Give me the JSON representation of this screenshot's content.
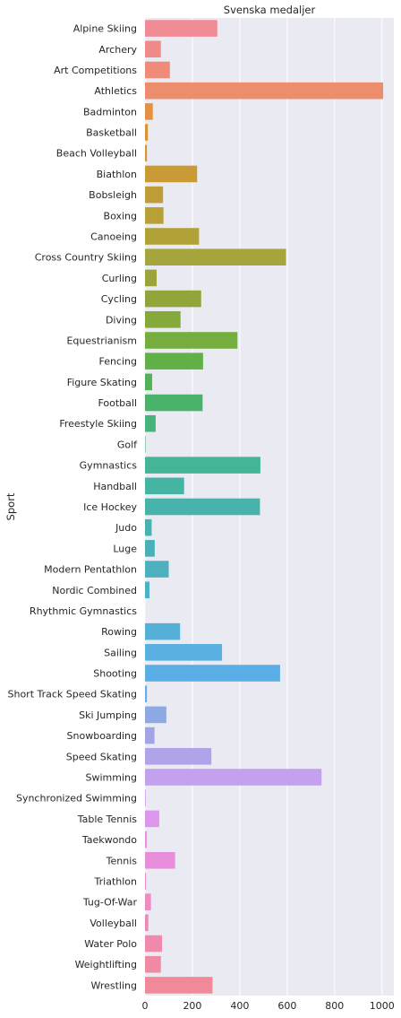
{
  "chart_data": {
    "type": "bar",
    "orientation": "horizontal",
    "title": "Svenska medaljer",
    "xlabel": "",
    "ylabel": "Sport",
    "xlim": [
      0,
      1050
    ],
    "xticks": [
      0,
      200,
      400,
      600,
      800,
      1000
    ],
    "grid": true,
    "legend": "none",
    "categories": [
      "Alpine Skiing",
      "Archery",
      "Art Competitions",
      "Athletics",
      "Badminton",
      "Basketball",
      "Beach Volleyball",
      "Biathlon",
      "Bobsleigh",
      "Boxing",
      "Canoeing",
      "Cross Country Skiing",
      "Curling",
      "Cycling",
      "Diving",
      "Equestrianism",
      "Fencing",
      "Figure Skating",
      "Football",
      "Freestyle Skiing",
      "Golf",
      "Gymnastics",
      "Handball",
      "Ice Hockey",
      "Judo",
      "Luge",
      "Modern Pentathlon",
      "Nordic Combined",
      "Rhythmic Gymnastics",
      "Rowing",
      "Sailing",
      "Shooting",
      "Short Track Speed Skating",
      "Ski Jumping",
      "Snowboarding",
      "Speed Skating",
      "Swimming",
      "Synchronized Swimming",
      "Table Tennis",
      "Taekwondo",
      "Tennis",
      "Triathlon",
      "Tug-Of-War",
      "Volleyball",
      "Water Polo",
      "Weightlifting",
      "Wrestling"
    ],
    "values": [
      305,
      67,
      105,
      1005,
      33,
      12,
      8,
      220,
      76,
      78,
      228,
      595,
      49,
      237,
      150,
      390,
      245,
      30,
      243,
      45,
      2,
      487,
      165,
      485,
      28,
      41,
      100,
      19,
      0,
      148,
      325,
      570,
      8,
      90,
      40,
      280,
      745,
      3,
      60,
      8,
      127,
      4,
      25,
      14,
      72,
      67,
      285
    ],
    "colors": [
      "#f08a94",
      "#f08a89",
      "#ef8b78",
      "#ec8e6c",
      "#e39243",
      "#d99535",
      "#d39732",
      "#c99a35",
      "#bf9d36",
      "#b9a036",
      "#b1a237",
      "#a6a43c",
      "#9ba33a",
      "#90a63a",
      "#85a93a",
      "#76ad3f",
      "#62b048",
      "#52b258",
      "#49b26b",
      "#46b37c",
      "#44b48b",
      "#45b497",
      "#46b4a2",
      "#47b3aa",
      "#48b2b1",
      "#4ab0b8",
      "#4cb0be",
      "#4fb1c6",
      "#52b1ce",
      "#55b0d8",
      "#58afe0",
      "#5bade6",
      "#6daae8",
      "#8ea8e5",
      "#a2a5e4",
      "#b1a3ea",
      "#c3a1ef",
      "#d09cf0",
      "#de96ec",
      "#e890e4",
      "#e88dd9",
      "#ec8bcd",
      "#ee8bc2",
      "#ef8ab7",
      "#f08aad",
      "#f08aa3",
      "#f08a98"
    ]
  }
}
